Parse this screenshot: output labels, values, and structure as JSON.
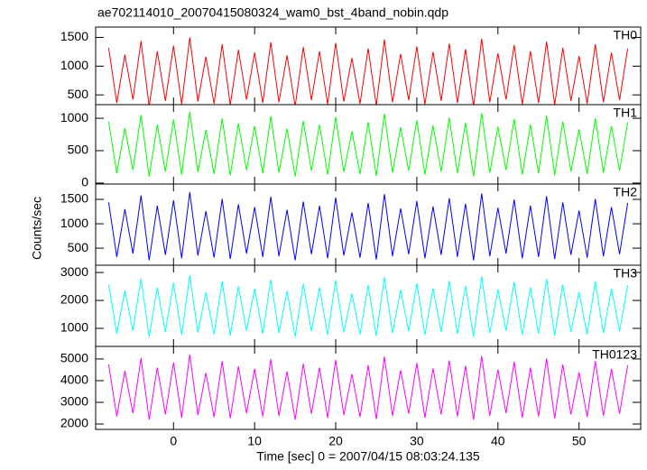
{
  "chart_data": [
    {
      "type": "line",
      "title": "ae702114010_20070415080324_wam0_bst_4band_nobin.qdp",
      "x": [
        -8,
        -7,
        -6,
        -5,
        -4,
        -3,
        -2,
        -1,
        0,
        1,
        2,
        3,
        4,
        5,
        6,
        7,
        8,
        9,
        10,
        11,
        12,
        13,
        14,
        15,
        16,
        17,
        18,
        19,
        20,
        21,
        22,
        23,
        24,
        25,
        26,
        27,
        28,
        29,
        30,
        31,
        32,
        33,
        34,
        35,
        36,
        37,
        38,
        39,
        40,
        41,
        42,
        43,
        44,
        45,
        46,
        47,
        48,
        49,
        50,
        51,
        52,
        53,
        54,
        55,
        56
      ],
      "series": [
        {
          "name": "TH0",
          "color": "#ff0000",
          "values": [
            1320,
            360,
            1200,
            420,
            1440,
            300,
            1260,
            396,
            1356,
            336,
            1500,
            384,
            1164,
            348,
            1380,
            324,
            1284,
            420,
            1236,
            360,
            1416,
            372,
            1188,
            300,
            1332,
            408,
            1260,
            336,
            1404,
            384,
            1140,
            348,
            1308,
            312,
            1464,
            372,
            1212,
            408,
            1344,
            336,
            1248,
            396,
            1392,
            360,
            1296,
            300,
            1476,
            372,
            1224,
            420,
            1368,
            336,
            1260,
            360,
            1428,
            324,
            1320,
            396,
            1176,
            348,
            1380,
            372,
            1236,
            408,
            1308
          ]
        }
      ],
      "ylim": [
        330,
        1680
      ],
      "yticks": [
        500,
        1000,
        1500
      ]
    },
    {
      "type": "line",
      "x": [
        -8,
        -7,
        -6,
        -5,
        -4,
        -3,
        -2,
        -1,
        0,
        1,
        2,
        3,
        4,
        5,
        6,
        7,
        8,
        9,
        10,
        11,
        12,
        13,
        14,
        15,
        16,
        17,
        18,
        19,
        20,
        21,
        22,
        23,
        24,
        25,
        26,
        27,
        28,
        29,
        30,
        31,
        32,
        33,
        34,
        35,
        36,
        37,
        38,
        39,
        40,
        41,
        42,
        43,
        44,
        45,
        46,
        47,
        48,
        49,
        50,
        51,
        52,
        53,
        54,
        55,
        56
      ],
      "series": [
        {
          "name": "TH1",
          "color": "#00ff00",
          "values": [
            950,
            150,
            850,
            200,
            1050,
            100,
            900,
            180,
            980,
            130,
            1100,
            170,
            820,
            140,
            1000,
            120,
            920,
            200,
            880,
            150,
            1030,
            160,
            840,
            100,
            960,
            190,
            900,
            130,
            1020,
            170,
            800,
            140,
            940,
            110,
            1070,
            160,
            860,
            190,
            970,
            130,
            890,
            180,
            1010,
            150,
            930,
            100,
            1080,
            160,
            870,
            200,
            990,
            130,
            900,
            150,
            1040,
            120,
            950,
            180,
            830,
            140,
            1000,
            160,
            880,
            190,
            940
          ]
        }
      ],
      "ylim": [
        -15,
        1210
      ],
      "yticks": [
        0,
        500,
        1000
      ]
    },
    {
      "type": "line",
      "ylabel": "Counts/sec",
      "x": [
        -8,
        -7,
        -6,
        -5,
        -4,
        -3,
        -2,
        -1,
        0,
        1,
        2,
        3,
        4,
        5,
        6,
        7,
        8,
        9,
        10,
        11,
        12,
        13,
        14,
        15,
        16,
        17,
        18,
        19,
        20,
        21,
        22,
        23,
        24,
        25,
        26,
        27,
        28,
        29,
        30,
        31,
        32,
        33,
        34,
        35,
        36,
        37,
        38,
        39,
        40,
        41,
        42,
        43,
        44,
        45,
        46,
        47,
        48,
        49,
        50,
        51,
        52,
        53,
        54,
        55,
        56
      ],
      "series": [
        {
          "name": "TH2",
          "color": "#0000ff",
          "values": [
            1440,
            320,
            1300,
            390,
            1580,
            250,
            1370,
            362,
            1482,
            292,
            1650,
            348,
            1258,
            306,
            1510,
            278,
            1398,
            390,
            1342,
            320,
            1552,
            334,
            1286,
            250,
            1454,
            376,
            1370,
            292,
            1538,
            348,
            1230,
            306,
            1426,
            264,
            1608,
            334,
            1314,
            376,
            1468,
            292,
            1356,
            362,
            1524,
            320,
            1412,
            250,
            1622,
            334,
            1328,
            390,
            1496,
            292,
            1370,
            320,
            1566,
            278,
            1440,
            362,
            1272,
            306,
            1510,
            334,
            1342,
            376,
            1426
          ]
        }
      ],
      "ylim": [
        150,
        1815
      ],
      "yticks": [
        500,
        1000,
        1500
      ]
    },
    {
      "type": "line",
      "x": [
        -8,
        -7,
        -6,
        -5,
        -4,
        -3,
        -2,
        -1,
        0,
        1,
        2,
        3,
        4,
        5,
        6,
        7,
        8,
        9,
        10,
        11,
        12,
        13,
        14,
        15,
        16,
        17,
        18,
        19,
        20,
        21,
        22,
        23,
        24,
        25,
        26,
        27,
        28,
        29,
        30,
        31,
        32,
        33,
        34,
        35,
        36,
        37,
        38,
        39,
        40,
        41,
        42,
        43,
        44,
        45,
        46,
        47,
        48,
        49,
        50,
        51,
        52,
        53,
        54,
        55,
        56
      ],
      "series": [
        {
          "name": "TH3",
          "color": "#00ffff",
          "values": [
            2570,
            810,
            2350,
            920,
            2790,
            700,
            2460,
            876,
            2636,
            766,
            2900,
            854,
            2284,
            788,
            2680,
            744,
            2504,
            920,
            2416,
            810,
            2746,
            832,
            2328,
            700,
            2592,
            898,
            2460,
            766,
            2724,
            854,
            2240,
            788,
            2548,
            722,
            2834,
            832,
            2372,
            898,
            2614,
            766,
            2438,
            876,
            2702,
            810,
            2526,
            700,
            2856,
            832,
            2394,
            920,
            2658,
            766,
            2460,
            810,
            2768,
            744,
            2570,
            876,
            2306,
            788,
            2680,
            832,
            2416,
            898,
            2548
          ]
        }
      ],
      "ylim": [
        355,
        3260
      ],
      "yticks": [
        1000,
        2000,
        3000
      ]
    },
    {
      "type": "line",
      "xlabel": "Time [sec] 0 = 2007/04/15 08:03:24.135",
      "x": [
        -8,
        -7,
        -6,
        -5,
        -4,
        -3,
        -2,
        -1,
        0,
        1,
        2,
        3,
        4,
        5,
        6,
        7,
        8,
        9,
        10,
        11,
        12,
        13,
        14,
        15,
        16,
        17,
        18,
        19,
        20,
        21,
        22,
        23,
        24,
        25,
        26,
        27,
        28,
        29,
        30,
        31,
        32,
        33,
        34,
        35,
        36,
        37,
        38,
        39,
        40,
        41,
        42,
        43,
        44,
        45,
        46,
        47,
        48,
        49,
        50,
        51,
        52,
        53,
        54,
        55,
        56
      ],
      "series": [
        {
          "name": "TH0123",
          "color": "#ff00ff",
          "values": [
            4750,
            2350,
            4450,
            2500,
            5050,
            2200,
            4600,
            2440,
            4840,
            2290,
            5200,
            2410,
            4360,
            2320,
            4900,
            2260,
            4660,
            2500,
            4540,
            2350,
            4990,
            2380,
            4420,
            2200,
            4780,
            2470,
            4600,
            2290,
            4960,
            2410,
            4300,
            2320,
            4720,
            2230,
            5110,
            2380,
            4480,
            2470,
            4810,
            2290,
            4570,
            2440,
            4930,
            2350,
            4690,
            2200,
            5140,
            2380,
            4510,
            2500,
            4870,
            2290,
            4600,
            2350,
            5020,
            2260,
            4750,
            2440,
            4390,
            2320,
            4900,
            2380,
            4540,
            2470,
            4720
          ]
        }
      ],
      "ylim": [
        1750,
        5580
      ],
      "yticks": [
        2000,
        3000,
        4000,
        5000
      ],
      "xlim": [
        -9.6,
        57.6
      ],
      "xticks": [
        0,
        10,
        20,
        30,
        40,
        50
      ]
    }
  ]
}
